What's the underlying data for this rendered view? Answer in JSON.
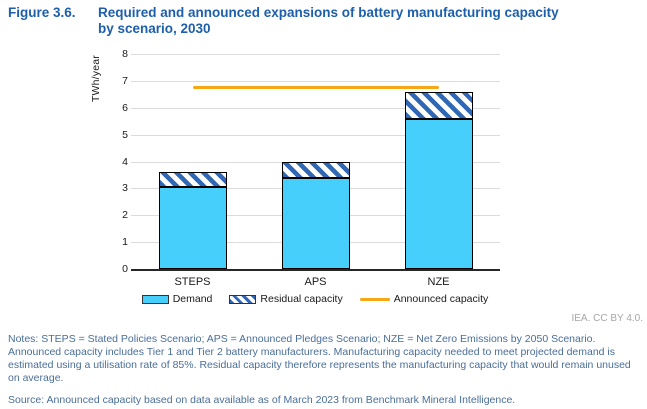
{
  "figure": {
    "label": "Figure 3.6.",
    "title_line1": "Required and announced expansions of battery manufacturing capacity",
    "title_line2": "by scenario, 2030"
  },
  "chart_data": {
    "type": "bar",
    "stacked": true,
    "categories": [
      "STEPS",
      "APS",
      "NZE"
    ],
    "series": [
      {
        "name": "Demand",
        "values": [
          3.05,
          3.4,
          5.6
        ],
        "color": "#46cffb",
        "pattern": "solid"
      },
      {
        "name": "Residual capacity",
        "values": [
          0.55,
          0.6,
          1.0
        ],
        "color": "#3168b5",
        "pattern": "diagonal-hatch"
      }
    ],
    "overlay_line": {
      "name": "Announced capacity",
      "value": 6.75,
      "color": "#f5a716"
    },
    "ylabel": "TWh/year",
    "ylim": [
      0,
      8
    ],
    "yticks": [
      0,
      1,
      2,
      3,
      4,
      5,
      6,
      7,
      8
    ],
    "grid": true,
    "legend_position": "bottom",
    "totals": {
      "STEPS": 3.6,
      "APS": 4.0,
      "NZE": 6.6
    }
  },
  "credit": "IEA. CC BY 4.0.",
  "notes": "Notes: STEPS = Stated Policies Scenario; APS = Announced Pledges Scenario; NZE = Net Zero Emissions by 2050 Scenario. Announced capacity includes Tier 1 and Tier 2 battery manufacturers. Manufacturing capacity needed to meet projected demand is estimated using a utilisation rate of 85%. Residual capacity therefore represents the manufacturing capacity that would remain unused on average.",
  "source": "Source: Announced capacity based on data available as of March 2023 from Benchmark Mineral Intelligence."
}
